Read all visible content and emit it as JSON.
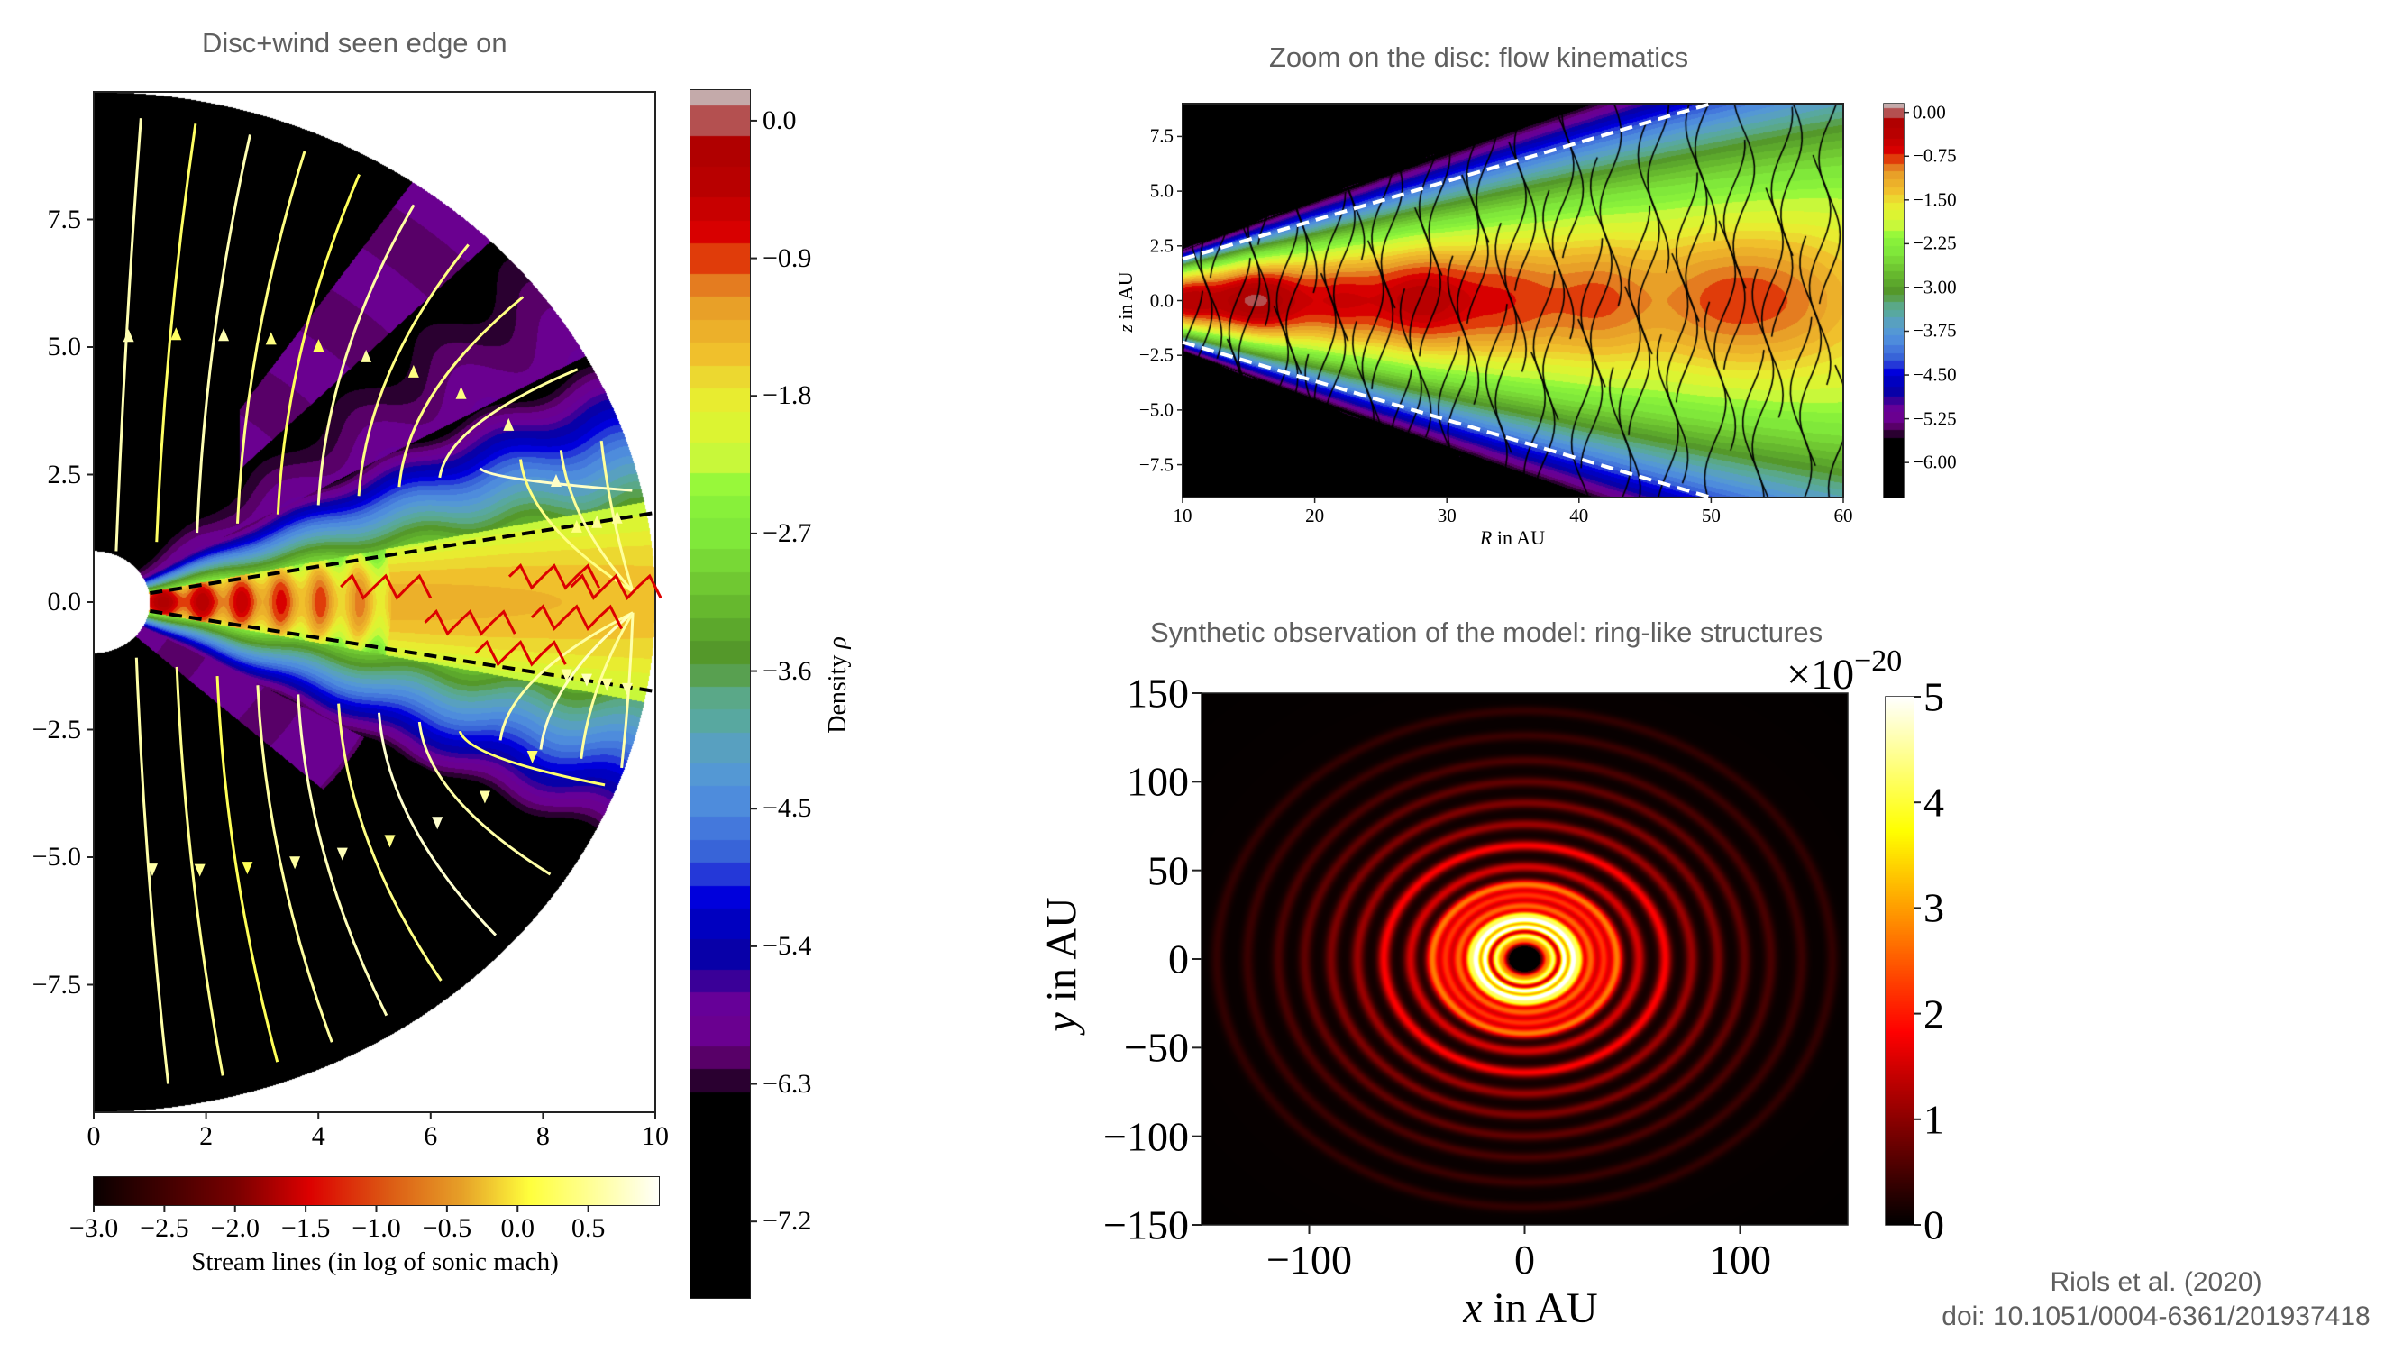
{
  "chart_data": [
    {
      "id": "edge_on",
      "type": "heatmap",
      "title": "Disc+wind seen edge on",
      "xlabel": "",
      "ylabel": "",
      "xlim": [
        0,
        10
      ],
      "ylim": [
        -10,
        10
      ],
      "xticks": [
        0,
        2,
        4,
        6,
        8,
        10
      ],
      "xtick_labels": [
        "0",
        "2",
        "4",
        "6",
        "8",
        "10"
      ],
      "yticks": [
        7.5,
        5.0,
        2.5,
        0.0,
        -2.5,
        -5.0,
        -7.5
      ],
      "ytick_labels": [
        "7.5",
        "5.0",
        "2.5",
        "0.0",
        "−2.5",
        "−5.0",
        "−7.5"
      ],
      "geometry": "spherical wedge, inner radius 1, outer radius 10",
      "disc_opening_lines_slope": 0.175,
      "colorbar": {
        "label": "Density ρ",
        "orientation": "vertical",
        "range": [
          -7.7,
          0.2
        ],
        "ticks": [
          0.0,
          -0.9,
          -1.8,
          -2.7,
          -3.6,
          -4.5,
          -5.4,
          -6.3,
          -7.2
        ],
        "tick_labels": [
          "0.0",
          "−0.9",
          "−1.8",
          "−2.7",
          "−3.6",
          "−4.5",
          "−5.4",
          "−6.3",
          "−7.2"
        ],
        "levels": [
          {
            "v": 0.1,
            "c": "#c4aaaa"
          },
          {
            "v": -0.1,
            "c": "#b45050"
          },
          {
            "v": -0.3,
            "c": "#b00000"
          },
          {
            "v": -0.5,
            "c": "#b80000"
          },
          {
            "v": -0.65,
            "c": "#c80000"
          },
          {
            "v": -0.8,
            "c": "#d80000"
          },
          {
            "v": -1.0,
            "c": "#e03c0a"
          },
          {
            "v": -1.15,
            "c": "#e47c20"
          },
          {
            "v": -1.3,
            "c": "#e8a028"
          },
          {
            "v": -1.45,
            "c": "#ecb02a"
          },
          {
            "v": -1.6,
            "c": "#f0c02c"
          },
          {
            "v": -1.75,
            "c": "#ecd830"
          },
          {
            "v": -1.9,
            "c": "#e8ec30"
          },
          {
            "v": -2.1,
            "c": "#dcf432"
          },
          {
            "v": -2.3,
            "c": "#c8f83a"
          },
          {
            "v": -2.45,
            "c": "#98f83a"
          },
          {
            "v": -2.6,
            "c": "#88f03a"
          },
          {
            "v": -2.8,
            "c": "#80e83a"
          },
          {
            "v": -2.95,
            "c": "#78d836"
          },
          {
            "v": -3.1,
            "c": "#70c832"
          },
          {
            "v": -3.25,
            "c": "#66b82e"
          },
          {
            "v": -3.4,
            "c": "#5ca82c"
          },
          {
            "v": -3.55,
            "c": "#54982a"
          },
          {
            "v": -3.7,
            "c": "#58a050"
          },
          {
            "v": -3.85,
            "c": "#5aa888"
          },
          {
            "v": -4.0,
            "c": "#58a8a0"
          },
          {
            "v": -4.2,
            "c": "#58a0c0"
          },
          {
            "v": -4.35,
            "c": "#5498d4"
          },
          {
            "v": -4.55,
            "c": "#4e8cdc"
          },
          {
            "v": -4.7,
            "c": "#4478dc"
          },
          {
            "v": -4.85,
            "c": "#3864d8"
          },
          {
            "v": -5.0,
            "c": "#2438d8"
          },
          {
            "v": -5.15,
            "c": "#0000dc"
          },
          {
            "v": -5.35,
            "c": "#0000c0"
          },
          {
            "v": -5.55,
            "c": "#0800a8"
          },
          {
            "v": -5.7,
            "c": "#3a0098"
          },
          {
            "v": -5.85,
            "c": "#660098"
          },
          {
            "v": -6.05,
            "c": "#6a0090"
          },
          {
            "v": -6.2,
            "c": "#580068"
          },
          {
            "v": -6.35,
            "c": "#2a0030"
          },
          {
            "v": -6.5,
            "c": "#000000"
          }
        ]
      },
      "streamlines_colorbar": {
        "label": "Stream lines (in log of sonic mach)",
        "orientation": "horizontal",
        "range": [
          -3.0,
          1.0
        ],
        "ticks": [
          -3.0,
          -2.5,
          -2.0,
          -1.5,
          -1.0,
          -0.5,
          0.0,
          0.5
        ],
        "tick_labels": [
          "−3.0",
          "−2.5",
          "−2.0",
          "−1.5",
          "−1.0",
          "−0.5",
          "0.0",
          "0.5"
        ],
        "colormap": "hot"
      }
    },
    {
      "id": "flow_kinematics",
      "type": "heatmap",
      "title": "Zoom on the disc: flow kinematics",
      "xlabel": "R in AU",
      "ylabel": "z in AU",
      "xlim": [
        10,
        60
      ],
      "ylim": [
        -9,
        9
      ],
      "xticks": [
        10,
        20,
        30,
        40,
        50,
        60
      ],
      "xtick_labels": [
        "10",
        "20",
        "30",
        "40",
        "50",
        "60"
      ],
      "yticks": [
        7.5,
        5.0,
        2.5,
        0.0,
        -2.5,
        -5.0,
        -7.5
      ],
      "ytick_labels": [
        "7.5",
        "5.0",
        "2.5",
        "0.0",
        "−2.5",
        "−5.0",
        "−7.5"
      ],
      "dashed_lines": [
        {
          "from": [
            10,
            1.9
          ],
          "to": [
            50,
            9.0
          ],
          "color": "#ffffff"
        },
        {
          "from": [
            10,
            -1.9
          ],
          "to": [
            50,
            -9.0
          ],
          "color": "#ffffff"
        }
      ],
      "density_blobs_R": [
        10.5,
        14.5,
        17,
        22,
        27,
        29.5,
        34.5,
        41.5,
        50.5,
        56
      ],
      "colorbar": {
        "orientation": "vertical",
        "range": [
          -6.6,
          0.15
        ],
        "ticks": [
          0.0,
          -0.75,
          -1.5,
          -2.25,
          -3.0,
          -3.75,
          -4.5,
          -5.25,
          -6.0
        ],
        "tick_labels": [
          "0.00",
          "−0.75",
          "−1.50",
          "−2.25",
          "−3.00",
          "−3.75",
          "−4.50",
          "−5.25",
          "−6.00"
        ]
      }
    },
    {
      "id": "synthetic_observation",
      "type": "heatmap",
      "title": "Synthetic observation of the model: ring-like structures",
      "xlabel": "x in AU",
      "ylabel": "y in AU",
      "xlim": [
        -150,
        150
      ],
      "ylim": [
        -150,
        150
      ],
      "xticks": [
        -100,
        0,
        100
      ],
      "xtick_labels": [
        "−100",
        "0",
        "100"
      ],
      "yticks": [
        150,
        100,
        50,
        0,
        -50,
        -100,
        -150
      ],
      "ytick_labels": [
        "150",
        "100",
        "50",
        "0",
        "−50",
        "−100",
        "−150"
      ],
      "rings_AU": [
        {
          "r": 6,
          "i": 0.0
        },
        {
          "r": 10,
          "i": 2.2
        },
        {
          "r": 13,
          "i": 4.0
        },
        {
          "r": 18,
          "i": 5.0
        },
        {
          "r": 22,
          "i": 5.0
        },
        {
          "r": 25,
          "i": 3.5
        },
        {
          "r": 30,
          "i": 2.4
        },
        {
          "r": 36,
          "i": 2.0
        },
        {
          "r": 42,
          "i": 2.6
        },
        {
          "r": 52,
          "i": 1.4
        },
        {
          "r": 64,
          "i": 1.7
        },
        {
          "r": 76,
          "i": 1.0
        },
        {
          "r": 88,
          "i": 0.8
        },
        {
          "r": 100,
          "i": 0.6
        },
        {
          "r": 112,
          "i": 0.45
        },
        {
          "r": 126,
          "i": 0.35
        },
        {
          "r": 140,
          "i": 0.3
        }
      ],
      "colorbar": {
        "orientation": "vertical",
        "range": [
          0,
          5
        ],
        "ticks": [
          0,
          1,
          2,
          3,
          4,
          5
        ],
        "tick_labels": [
          "0",
          "1",
          "2",
          "3",
          "4",
          "5"
        ],
        "multiplier": "×10⁻²⁰",
        "multiplier_base": "×10",
        "multiplier_exp": "−20",
        "colormap": "hot"
      }
    }
  ],
  "credits": {
    "line1": "Riols et al. (2020)",
    "line2": "doi: 10.1051/0004-6361/201937418"
  }
}
